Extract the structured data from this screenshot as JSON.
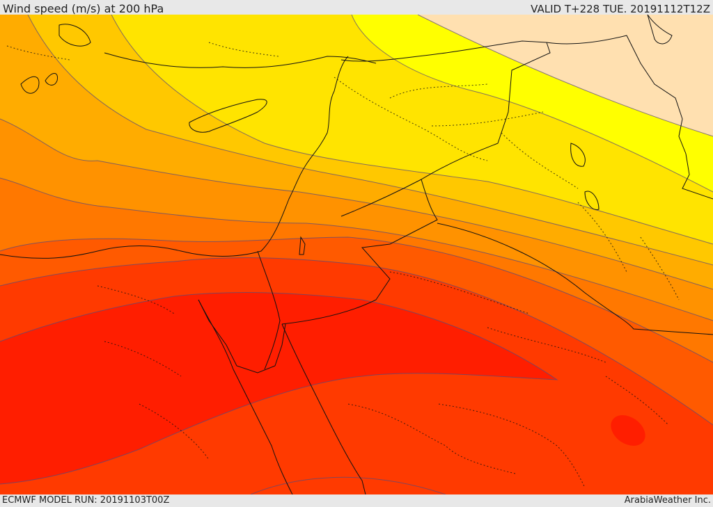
{
  "header": {
    "title": "Wind speed (m/s) at 200 hPa",
    "valid_time": "VALID T+228 TUE. 20191112T12Z"
  },
  "footer": {
    "model_run": "ECMWF MODEL RUN: 20191103T00Z",
    "credit": "ArabiaWeather Inc."
  },
  "map": {
    "field": "wind speed",
    "level": "200 hPa",
    "band_colors": [
      "#ffe0b0",
      "#ffff00",
      "#ffe400",
      "#ffc800",
      "#ffac00",
      "#ff9200",
      "#ff7800",
      "#ff5a00",
      "#ff3a00",
      "#ff1e00",
      "#ff0000"
    ],
    "contour_color": "#5a4a7a",
    "border_color": "#111111"
  }
}
